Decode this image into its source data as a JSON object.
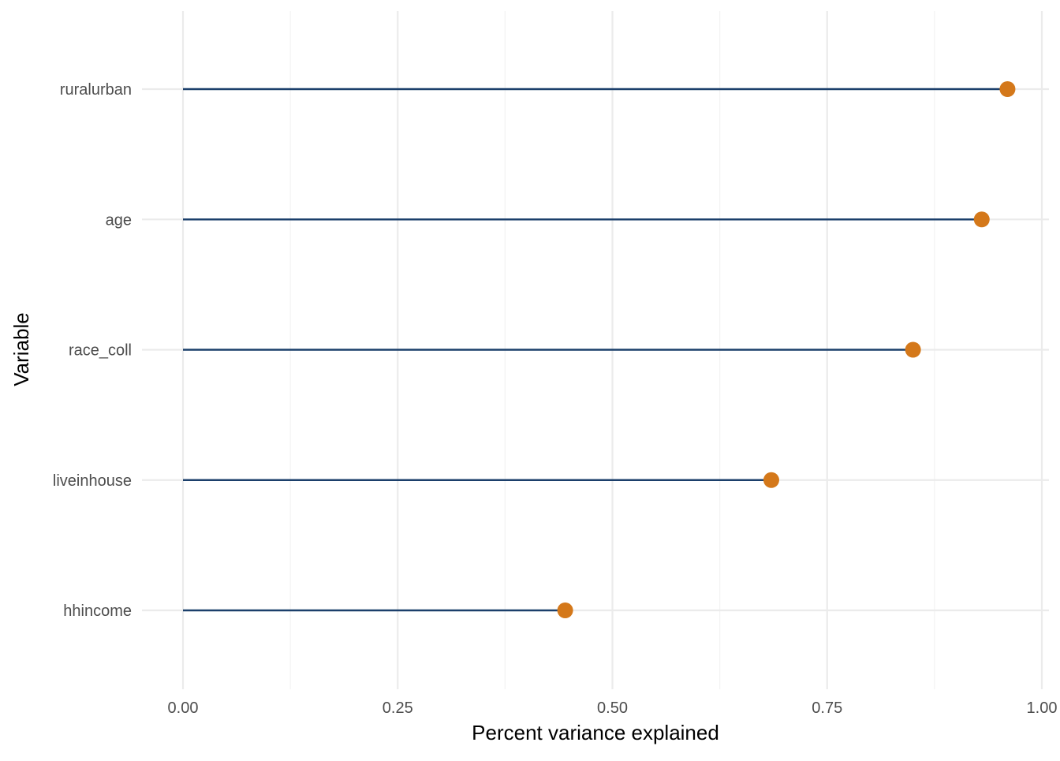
{
  "chart_data": {
    "type": "lollipop",
    "orientation": "horizontal",
    "title": "",
    "xlabel": "Percent variance explained",
    "ylabel": "Variable",
    "xlim": [
      0,
      1
    ],
    "x_ticks": [
      0,
      0.25,
      0.5,
      0.75,
      1.0
    ],
    "x_tick_labels": [
      "0.00",
      "0.25",
      "0.50",
      "0.75",
      "1.00"
    ],
    "categories": [
      "ruralurban",
      "age",
      "race_coll",
      "liveinhouse",
      "hhincome"
    ],
    "values": [
      0.96,
      0.93,
      0.85,
      0.685,
      0.445
    ],
    "grid": true,
    "legend": "none",
    "colors": {
      "segment": "#1b3f6b",
      "point": "#d4781a",
      "grid_major": "#ebebeb",
      "grid_minor": "#f3f3f3"
    }
  }
}
